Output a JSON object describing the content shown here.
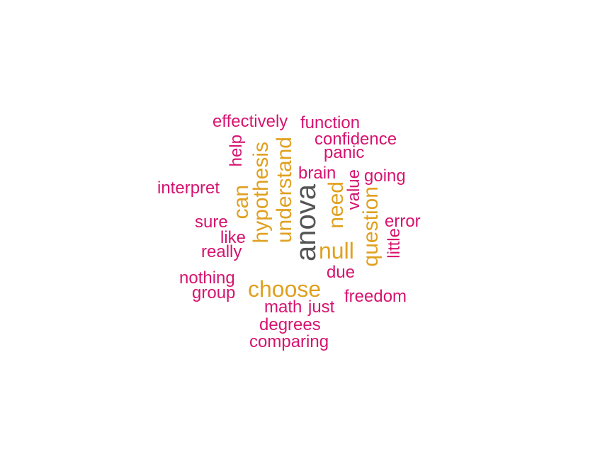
{
  "palette": {
    "large": "#555555",
    "medium": "#e0a020",
    "small": "#d6136f"
  },
  "words": [
    {
      "text": "anova",
      "tier": "large"
    },
    {
      "text": "choose",
      "tier": "medium"
    },
    {
      "text": "hypothesis",
      "tier": "medium"
    },
    {
      "text": "understand",
      "tier": "medium"
    },
    {
      "text": "null",
      "tier": "medium"
    },
    {
      "text": "need",
      "tier": "medium"
    },
    {
      "text": "question",
      "tier": "medium"
    },
    {
      "text": "can",
      "tier": "medium"
    },
    {
      "text": "effectively",
      "tier": "small"
    },
    {
      "text": "function",
      "tier": "small"
    },
    {
      "text": "confidence",
      "tier": "small"
    },
    {
      "text": "panic",
      "tier": "small"
    },
    {
      "text": "help",
      "tier": "small"
    },
    {
      "text": "brain",
      "tier": "small"
    },
    {
      "text": "going",
      "tier": "small"
    },
    {
      "text": "value",
      "tier": "small"
    },
    {
      "text": "interpret",
      "tier": "small"
    },
    {
      "text": "sure",
      "tier": "small"
    },
    {
      "text": "error",
      "tier": "small"
    },
    {
      "text": "like",
      "tier": "small"
    },
    {
      "text": "little",
      "tier": "small"
    },
    {
      "text": "really",
      "tier": "small"
    },
    {
      "text": "due",
      "tier": "small"
    },
    {
      "text": "nothing",
      "tier": "small"
    },
    {
      "text": "group",
      "tier": "small"
    },
    {
      "text": "freedom",
      "tier": "small"
    },
    {
      "text": "math",
      "tier": "small"
    },
    {
      "text": "just",
      "tier": "small"
    },
    {
      "text": "degrees",
      "tier": "small"
    },
    {
      "text": "comparing",
      "tier": "small"
    }
  ]
}
